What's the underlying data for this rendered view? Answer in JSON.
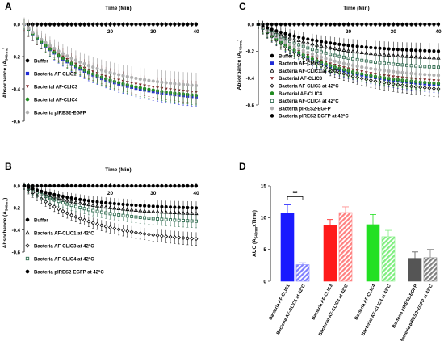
{
  "colors": {
    "buffer": "#000000",
    "clic1": "#1f2bd6",
    "clic3": "#7a1418",
    "clic4": "#1f8a1f",
    "egfp": "#b0b0b0",
    "clic1_42": "#000000",
    "clic3_42": "#000000",
    "clic4_42": "#2e6b4e",
    "egfp_42": "#000000",
    "bar_clic1": "#1a1aff",
    "bar_clic1_42": "#7f7fff",
    "bar_clic3": "#ff1a1a",
    "bar_clic3_42": "#ff8080",
    "bar_clic4": "#22e022",
    "bar_clic4_42": "#80ee80",
    "bar_egfp": "#555555",
    "bar_egfp_42": "#808080"
  },
  "chart_data": [
    {
      "panel": "A",
      "type": "scatter",
      "xlabel": "Time (Min)",
      "ylabel": "Absorbance (A540nm)",
      "ylabel_main": "Absorbance (A",
      "ylabel_sub": "540nm",
      "ylabel_end": ")",
      "xlim": [
        0,
        40
      ],
      "ylim": [
        -0.6,
        0.0
      ],
      "xticks": [
        "20",
        "30",
        "40"
      ],
      "yticks": [
        "-0.6",
        "-0.4",
        "-0.2",
        "0.0"
      ],
      "series": [
        {
          "name": "Buffer",
          "marker": "circle-filled",
          "color_key": "buffer",
          "start": 0.0,
          "end": 0.0,
          "err": 0.005
        },
        {
          "name": "Bacteria AF-CLIC1",
          "marker": "square-filled",
          "color_key": "clic1",
          "start": 0.0,
          "end": -0.45,
          "err": 0.05
        },
        {
          "name": "Bacterial AF-CLIC3",
          "marker": "triangle-down-filled",
          "color_key": "clic3",
          "start": 0.0,
          "end": -0.42,
          "err": 0.06
        },
        {
          "name": "Bacterial AF-CLIC4",
          "marker": "circle-filled",
          "color_key": "clic4",
          "start": 0.0,
          "end": -0.44,
          "err": 0.05
        },
        {
          "name": "Bacteria pIRES2-EGFP",
          "marker": "circle-filled",
          "color_key": "egfp",
          "start": 0.0,
          "end": -0.38,
          "err": 0.07
        }
      ]
    },
    {
      "panel": "B",
      "type": "scatter",
      "xlabel": "Time (Min)",
      "ylabel": "Absorbance (A540nm)",
      "ylabel_main": "Absorbance (A",
      "ylabel_sub": "540nm",
      "ylabel_end": ")",
      "xlim": [
        0,
        40
      ],
      "ylim": [
        -0.6,
        0.0
      ],
      "xticks": [
        "20",
        "30",
        "40"
      ],
      "yticks": [
        "-0.6",
        "-0.4",
        "-0.2",
        "0.0"
      ],
      "series": [
        {
          "name": "Buffer",
          "marker": "circle-filled",
          "color_key": "buffer",
          "start": 0.0,
          "end": 0.0,
          "err": 0.005
        },
        {
          "name": "Bacteria AF-CLIC1 at 42°C",
          "marker": "triangle-up-open",
          "color_key": "clic1_42",
          "start": 0.0,
          "end": -0.25,
          "err": 0.05
        },
        {
          "name": "Bacteria AF-CLIC3 at 42°C",
          "marker": "diamond-open",
          "color_key": "clic3_42",
          "start": 0.0,
          "end": -0.48,
          "err": 0.05
        },
        {
          "name": "Bacteria AF-CLIC4  at 42°C",
          "marker": "square-open",
          "color_key": "clic4_42",
          "start": 0.0,
          "end": -0.32,
          "err": 0.05
        },
        {
          "name": "Bacteria pIRES2-EGFP at 42°C",
          "marker": "circle-filled",
          "color_key": "egfp_42",
          "start": 0.0,
          "end": -0.2,
          "err": 0.05
        }
      ]
    },
    {
      "panel": "C",
      "type": "scatter",
      "xlabel": "Time (Min)",
      "ylabel": "Absorbance (A540nm)",
      "ylabel_main": "Absorbance (A",
      "ylabel_sub": "540nm",
      "ylabel_end": ")",
      "xlim": [
        0,
        40
      ],
      "ylim": [
        -0.6,
        0.0
      ],
      "xticks": [
        "20",
        "30",
        "40"
      ],
      "yticks": [
        "-0.6",
        "-0.4",
        "-0.2",
        "0.0"
      ],
      "series": [
        {
          "name": "Buffer",
          "marker": "circle-filled",
          "color_key": "buffer",
          "start": 0.0,
          "end": 0.0,
          "err": 0.005
        },
        {
          "name": "Bacteria AF-CLIC1",
          "marker": "square-filled",
          "color_key": "clic1",
          "start": 0.0,
          "end": -0.45,
          "err": 0.05
        },
        {
          "name": "Bacteria AF-CLIC1 at 42°C",
          "marker": "triangle-up-open",
          "color_key": "clic1_42",
          "start": 0.0,
          "end": -0.25,
          "err": 0.05
        },
        {
          "name": "Bacterial AF-CLIC3",
          "marker": "triangle-down-filled",
          "color_key": "clic3",
          "start": 0.0,
          "end": -0.42,
          "err": 0.05
        },
        {
          "name": "Bacteria AF-CLIC3 at 42°C",
          "marker": "diamond-open",
          "color_key": "clic3_42",
          "start": 0.0,
          "end": -0.48,
          "err": 0.05
        },
        {
          "name": "Bacterial AF-CLIC4",
          "marker": "circle-filled",
          "color_key": "clic4",
          "start": 0.0,
          "end": -0.44,
          "err": 0.05
        },
        {
          "name": "Bacteria AF-CLIC4  at 42°C",
          "marker": "square-open",
          "color_key": "clic4_42",
          "start": 0.0,
          "end": -0.32,
          "err": 0.05
        },
        {
          "name": "Bacteria pIRES2-EGFP",
          "marker": "circle-filled",
          "color_key": "egfp",
          "start": 0.0,
          "end": -0.38,
          "err": 0.05
        },
        {
          "name": "Bacteria pIRES2-EGFP at 42°C",
          "marker": "circle-filled",
          "color_key": "egfp_42",
          "start": 0.0,
          "end": -0.2,
          "err": 0.05
        }
      ]
    },
    {
      "panel": "D",
      "type": "bar",
      "ylabel": "AUC (A540nm×Time)",
      "ylabel_main": "AUC (A",
      "ylabel_sub": "540nm",
      "ylabel_end": "xTime)",
      "ylim": [
        0,
        15
      ],
      "yticks": [
        "0",
        "5",
        "10",
        "15"
      ],
      "annotation": "**",
      "categories": [
        "Bacteria AF-CLIC1",
        "Bacteria AF-CLIC1 at 42°C",
        "Bacteria AF-CLIC3",
        "Bacterial AF-CLIC3 at 42°C",
        "Bacteria AF-CLIC4",
        "Bacterial AF-CLIC4 at 42°C",
        "Bacteria pIRES2-EGFP",
        "Bacteria pIRES2-EGFP at 42°C"
      ],
      "values": [
        10.7,
        2.6,
        8.8,
        10.8,
        8.9,
        7.0,
        3.6,
        3.7
      ],
      "errors": [
        1.3,
        0.3,
        0.9,
        0.9,
        1.6,
        1.0,
        1.0,
        1.3
      ],
      "hatched": [
        false,
        true,
        false,
        true,
        false,
        true,
        false,
        true
      ],
      "color_keys": [
        "bar_clic1",
        "bar_clic1_42",
        "bar_clic3",
        "bar_clic3_42",
        "bar_clic4",
        "bar_clic4_42",
        "bar_egfp",
        "bar_egfp_42"
      ]
    }
  ]
}
